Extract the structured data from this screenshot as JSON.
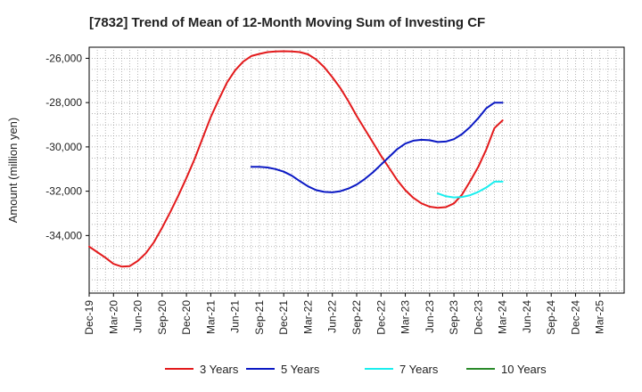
{
  "chart_data": {
    "type": "line",
    "title": "[7832]  Trend of Mean of 12-Month Moving Sum of Investing CF",
    "xlabel": "",
    "ylabel": "Amount (million yen)",
    "ylim": [
      -36600,
      -25500
    ],
    "yticks": [
      -26000,
      -28000,
      -30000,
      -32000,
      -34000
    ],
    "ytick_labels": [
      "-26,000",
      "-28,000",
      "-30,000",
      "-32,000",
      "-34,000"
    ],
    "x_range": [
      0,
      66
    ],
    "categories": [
      "Dec-19",
      "Mar-20",
      "Jun-20",
      "Sep-20",
      "Dec-20",
      "Mar-21",
      "Jun-21",
      "Sep-21",
      "Dec-21",
      "Mar-22",
      "Jun-22",
      "Sep-22",
      "Dec-22",
      "Mar-23",
      "Jun-23",
      "Sep-23",
      "Dec-23",
      "Mar-24",
      "Jun-24",
      "Sep-24",
      "Dec-24",
      "Mar-25"
    ],
    "category_x": [
      0,
      3,
      6,
      9,
      12,
      15,
      18,
      21,
      24,
      27,
      30,
      33,
      36,
      39,
      42,
      45,
      48,
      51,
      54,
      57,
      60,
      63
    ],
    "grid": true,
    "legend_position": "bottom",
    "series": [
      {
        "name": "3 Years",
        "color": "#e31a1c",
        "x": [
          0,
          1,
          2,
          3,
          4,
          5,
          6,
          7,
          8,
          9,
          10,
          11,
          12,
          13,
          14,
          15,
          16,
          17,
          18,
          19,
          20,
          21,
          22,
          23,
          24,
          25,
          26,
          27,
          28,
          29,
          30,
          31,
          32,
          33,
          34,
          35,
          36,
          37,
          38,
          39,
          40,
          41,
          42,
          43,
          44,
          45,
          46,
          47,
          48,
          49,
          50,
          51
        ],
        "values": [
          -34500,
          -34750,
          -35000,
          -35280,
          -35400,
          -35380,
          -35150,
          -34800,
          -34300,
          -33650,
          -32950,
          -32200,
          -31400,
          -30550,
          -29600,
          -28650,
          -27850,
          -27100,
          -26550,
          -26150,
          -25900,
          -25800,
          -25720,
          -25690,
          -25680,
          -25690,
          -25720,
          -25820,
          -26050,
          -26400,
          -26850,
          -27350,
          -27950,
          -28600,
          -29200,
          -29800,
          -30400,
          -30950,
          -31500,
          -31950,
          -32300,
          -32550,
          -32700,
          -32750,
          -32720,
          -32550,
          -32150,
          -31550,
          -30900,
          -30100,
          -29150,
          -28800
        ]
      },
      {
        "name": "5 Years",
        "color": "#0b19c4",
        "x": [
          20,
          21,
          22,
          23,
          24,
          25,
          26,
          27,
          28,
          29,
          30,
          31,
          32,
          33,
          34,
          35,
          36,
          37,
          38,
          39,
          40,
          41,
          42,
          43,
          44,
          45,
          46,
          47,
          48,
          49,
          50,
          51
        ],
        "values": [
          -30900,
          -30900,
          -30930,
          -31000,
          -31120,
          -31300,
          -31550,
          -31780,
          -31950,
          -32030,
          -32050,
          -32000,
          -31880,
          -31700,
          -31450,
          -31150,
          -30800,
          -30450,
          -30100,
          -29850,
          -29720,
          -29680,
          -29700,
          -29780,
          -29760,
          -29650,
          -29420,
          -29100,
          -28700,
          -28250,
          -28000,
          -28000
        ]
      },
      {
        "name": "7 Years",
        "color": "#1aeeee",
        "x": [
          43,
          44,
          45,
          46,
          47,
          48,
          49,
          50,
          51
        ],
        "values": [
          -32100,
          -32230,
          -32280,
          -32260,
          -32180,
          -32030,
          -31830,
          -31570,
          -31570
        ]
      },
      {
        "name": "10 Years",
        "color": "#2a8a2a",
        "x": [],
        "values": []
      }
    ]
  }
}
